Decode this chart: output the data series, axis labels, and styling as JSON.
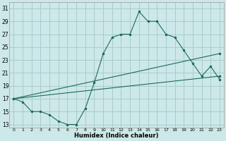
{
  "xlabel": "Humidex (Indice chaleur)",
  "bg_color": "#cde8e8",
  "grid_color": "#a8cccc",
  "line_color": "#1a6b5a",
  "xlim": [
    -0.5,
    23.5
  ],
  "ylim": [
    12.5,
    32
  ],
  "xticks": [
    0,
    1,
    2,
    3,
    4,
    5,
    6,
    7,
    8,
    9,
    10,
    11,
    12,
    13,
    14,
    15,
    16,
    17,
    18,
    19,
    20,
    21,
    22,
    23
  ],
  "yticks": [
    13,
    15,
    17,
    19,
    21,
    23,
    25,
    27,
    29,
    31
  ],
  "curve1_x": [
    0,
    1,
    2,
    3,
    4,
    5,
    6,
    7,
    8,
    9,
    10,
    11,
    12,
    13,
    14,
    15,
    16,
    17,
    18,
    19,
    20,
    21,
    22,
    23
  ],
  "curve1_y": [
    17,
    16.5,
    15,
    15,
    14.5,
    13.5,
    13,
    13,
    15.5,
    19.5,
    24,
    26.5,
    27,
    27,
    30.5,
    29,
    29,
    27,
    26.5,
    24.5,
    22.5,
    20.5,
    22,
    20
  ],
  "curve2_x": [
    0,
    23
  ],
  "curve2_y": [
    17,
    20.5
  ],
  "curve3_x": [
    0,
    23
  ],
  "curve3_y": [
    17,
    24
  ]
}
